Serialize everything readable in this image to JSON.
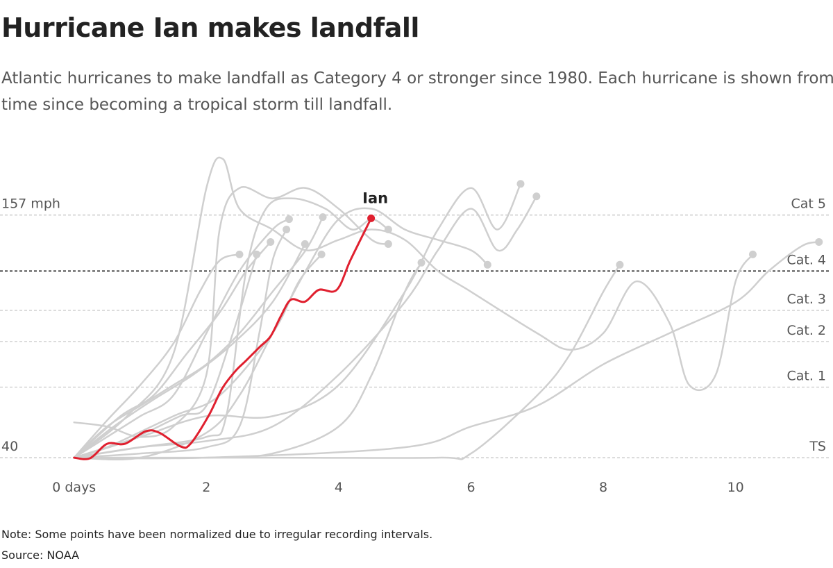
{
  "chart_data": {
    "type": "line",
    "title": "Hurricane Ian makes landfall",
    "subtitle": "Atlantic hurricanes to make landfall as Category 4 or stronger since 1980. Each hurricane is shown from time since becoming a tropical storm till landfall.",
    "note": "Note: Some points have been normalized due to irregular recording intervals.",
    "source": "Source: NOAA",
    "xlim": [
      -1.12,
      11.42
    ],
    "ylim": [
      33,
      187
    ],
    "xticks": [
      {
        "value": 0,
        "label": "0 days"
      },
      2,
      4,
      6,
      8,
      10
    ],
    "yticks": [
      {
        "value": 40,
        "label": "40"
      },
      {
        "value": 157,
        "label": "157 mph"
      }
    ],
    "thresholds": [
      {
        "value": 157,
        "label": "Cat 5"
      },
      {
        "value": 130,
        "label": "Cat. 4"
      },
      {
        "value": 111,
        "label": "Cat. 3"
      },
      {
        "value": 96,
        "label": "Cat. 2"
      },
      {
        "value": 74,
        "label": "Cat. 1"
      },
      {
        "value": 40,
        "label": "TS"
      }
    ],
    "highlight_threshold_color": "#111",
    "threshold_color": "#c8c8c8",
    "series": [
      {
        "name": "Ian",
        "color": "#e0202f",
        "x": [
          0,
          0.24,
          0.5,
          0.77,
          1.08,
          1.29,
          1.61,
          1.76,
          2.03,
          2.24,
          2.44,
          2.6,
          2.81,
          2.97,
          3.13,
          3.28,
          3.49,
          3.7,
          3.97,
          4.18,
          4.49
        ],
        "values": [
          40,
          39.7,
          46.7,
          46.7,
          52.7,
          52,
          45.4,
          46.7,
          60,
          73.4,
          81.8,
          86.8,
          93.5,
          98.5,
          108.5,
          116.2,
          115.2,
          120.9,
          120.9,
          135.4,
          155.4
        ]
      },
      {
        "color": "#cfcfcf",
        "x": [
          0,
          1,
          2,
          3,
          4,
          5,
          5.5,
          6,
          6.4,
          6.7,
          6.99
        ],
        "values": [
          40,
          45,
          48,
          55,
          80,
          115,
          140,
          160,
          140,
          150,
          166
        ]
      },
      {
        "color": "#cfcfcf",
        "x": [
          0,
          1,
          2,
          3,
          4,
          5,
          5.5,
          6,
          6.4,
          6.75
        ],
        "values": [
          40,
          50,
          60,
          60,
          75,
          120,
          150,
          170,
          150,
          172
        ]
      },
      {
        "color": "#cfcfcf",
        "x": [
          0,
          0.8,
          1.5,
          2,
          2.25,
          2.5,
          3,
          3.5,
          4,
          4.5,
          5,
          5.5,
          6,
          7,
          7.5,
          8,
          8.5,
          9,
          9.3,
          9.7,
          10,
          10.26
        ],
        "values": [
          40,
          60,
          90,
          170,
          184,
          160,
          150,
          140,
          145,
          150,
          145,
          130,
          120,
          100,
          92,
          100,
          125,
          105,
          75,
          80,
          125,
          138
        ]
      },
      {
        "color": "#cfcfcf",
        "x": [
          0,
          2,
          5,
          6,
          7,
          8,
          9,
          10,
          10.5,
          11,
          11.26
        ],
        "values": [
          40,
          40,
          45,
          55,
          65,
          85,
          100,
          115,
          130,
          142,
          144
        ]
      },
      {
        "color": "#cfcfcf",
        "x": [
          0,
          3,
          5.5,
          6,
          7,
          7.5,
          8,
          8.25
        ],
        "values": [
          40,
          40,
          40,
          42,
          70,
          90,
          120,
          133
        ]
      },
      {
        "color": "#cfcfcf",
        "x": [
          0,
          1,
          2,
          2.5,
          3,
          3.5,
          4,
          4.5,
          5,
          5.5,
          6,
          6.25
        ],
        "values": [
          40,
          40,
          52,
          70,
          100,
          130,
          155,
          160,
          150,
          145,
          140,
          133
        ]
      },
      {
        "color": "#cfcfcf",
        "x": [
          0,
          1,
          2,
          3,
          4,
          4.5,
          5,
          5.25
        ],
        "values": [
          40,
          40,
          40,
          42,
          55,
          80,
          120,
          134
        ]
      },
      {
        "color": "#cfcfcf",
        "x": [
          0,
          0.5,
          1,
          1.5,
          2,
          2.5,
          3,
          3.25
        ],
        "values": [
          40,
          50,
          60,
          70,
          100,
          130,
          150,
          155
        ]
      },
      {
        "color": "#cfcfcf",
        "x": [
          0,
          0.5,
          1,
          1.5,
          2,
          2.5,
          3,
          3.5,
          3.76
        ],
        "values": [
          40,
          55,
          65,
          75,
          85,
          100,
          120,
          140,
          156
        ]
      },
      {
        "color": "#cfcfcf",
        "x": [
          0,
          0.7,
          1.2,
          1.7,
          2.2,
          2.6,
          2.97
        ],
        "values": [
          40,
          60,
          70,
          90,
          110,
          130,
          144
        ]
      },
      {
        "color": "#cfcfcf",
        "x": [
          0,
          0.6,
          1.2,
          1.8,
          2.4,
          3,
          3.49
        ],
        "values": [
          40,
          55,
          68,
          80,
          95,
          115,
          143
        ]
      },
      {
        "color": "#cfcfcf",
        "x": [
          0,
          0.5,
          1.5,
          2.2,
          3,
          3.4,
          3.74
        ],
        "values": [
          40,
          45,
          60,
          70,
          100,
          125,
          138
        ]
      },
      {
        "color": "#cfcfcf",
        "x": [
          0,
          0.5,
          1,
          1.5,
          1.9,
          2.2,
          2.5
        ],
        "values": [
          40,
          58,
          75,
          95,
          120,
          135,
          138
        ]
      },
      {
        "color": "#cfcfcf",
        "x": [
          0,
          0.8,
          1.6,
          2,
          2.4,
          2.76
        ],
        "values": [
          40,
          48,
          60,
          65,
          100,
          138
        ]
      },
      {
        "color": "#cfcfcf",
        "x": [
          0,
          1,
          2,
          2.3,
          2.6,
          2.9,
          3.3,
          3.8,
          4.2,
          4.5,
          4.75
        ],
        "values": [
          40,
          45,
          50,
          60,
          130,
          160,
          165,
          160,
          150,
          155,
          150
        ]
      },
      {
        "color": "#cfcfcf",
        "x": [
          0,
          0.5,
          1,
          1.5,
          2,
          2.2,
          2.5,
          3,
          3.5,
          4,
          4.5,
          4.75
        ],
        "values": [
          57,
          55,
          50,
          55,
          80,
          150,
          170,
          165,
          170,
          160,
          145,
          143
        ]
      },
      {
        "color": "#cfcfcf",
        "x": [
          0,
          1,
          2,
          2.5,
          2.8,
          3,
          3.21
        ],
        "values": [
          40,
          42,
          45,
          55,
          100,
          135,
          150
        ]
      }
    ]
  }
}
